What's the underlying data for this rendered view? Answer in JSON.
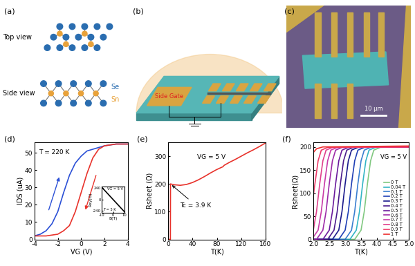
{
  "diagrams": {
    "a": {
      "label": "(a)",
      "views": [
        "Top view",
        "Side view"
      ],
      "atoms": [
        {
          "name": "Se",
          "color": "#2a6db0"
        },
        {
          "name": "Sn",
          "color": "#e8a23a"
        }
      ]
    },
    "b": {
      "label": "(b)",
      "gate_label": "Side Gate"
    },
    "c": {
      "label": "(c)",
      "scale_bar": "10 μm"
    }
  },
  "chart_data": [
    {
      "label": "(d)",
      "type": "line",
      "x_label": "VG (V)",
      "y_label": "IDS (uA)",
      "annotations": [
        "T = 220 K"
      ],
      "xlim": [
        -4,
        4
      ],
      "xticks": [
        -4,
        -2,
        0,
        2,
        4
      ],
      "ylim": [
        0,
        56
      ],
      "yticks": [
        0,
        10,
        20,
        30,
        40,
        50
      ],
      "series": [
        {
          "color": "#2b50d6",
          "x": [
            -4,
            -3.5,
            -3,
            -2.5,
            -2,
            -1.5,
            -1,
            -0.5,
            0,
            0.5,
            1,
            2,
            3,
            4
          ],
          "values": [
            2,
            3,
            5,
            9,
            16,
            27,
            37,
            44,
            48,
            51,
            52,
            54,
            55,
            55
          ]
        },
        {
          "color": "#e8322b",
          "x": [
            4,
            3,
            2,
            1.5,
            1,
            0.5,
            0,
            -0.5,
            -1,
            -1.5,
            -2,
            -3,
            -4
          ],
          "values": [
            55,
            55,
            54,
            52,
            47,
            38,
            27,
            16,
            8,
            5,
            3,
            2,
            2
          ]
        }
      ],
      "inset": {
        "type": "line",
        "x_label": "B(T)",
        "y_label": "Rxy(Ω)",
        "annotations": [
          "VG = 5 V",
          "T = 5 K"
        ],
        "xlim": [
          -10,
          10
        ],
        "xticks": [
          -10,
          0,
          10
        ],
        "ylim": [
          -280,
          280
        ],
        "yticks": [
          -240,
          0,
          240
        ],
        "series": [
          {
            "color": "#000000",
            "x": [
              -10,
              -5,
              0,
              5,
              10
            ],
            "values": [
              260,
              130,
              0,
              -130,
              -260
            ]
          }
        ]
      }
    },
    {
      "label": "(e)",
      "type": "line",
      "x_label": "T(K)",
      "y_label": "Rsheet (Ω)",
      "annotations": [
        "VG = 5 V"
      ],
      "tc_annotation": {
        "text": "Tc = 3.9 K",
        "x": 3.9,
        "y": 200
      },
      "xlim": [
        0,
        160
      ],
      "xticks": [
        0,
        40,
        80,
        120,
        160
      ],
      "ylim": [
        0,
        350
      ],
      "yticks": [
        0,
        100,
        200,
        300
      ],
      "series": [
        {
          "color": "#e8322b",
          "x": [
            0,
            3.8,
            3.9,
            4,
            10,
            20,
            30,
            40,
            50,
            60,
            70,
            80,
            90,
            92,
            100,
            110,
            120,
            130,
            140,
            150,
            160
          ],
          "values": [
            0,
            0,
            100,
            200,
            197,
            195,
            198,
            205,
            215,
            227,
            240,
            252,
            262,
            267,
            277,
            288,
            300,
            312,
            323,
            335,
            348
          ]
        }
      ]
    },
    {
      "label": "(f)",
      "type": "line",
      "x_label": "T(K)",
      "y_label": "Rsheet(Ω)",
      "annotations": [
        "VG = 5 V"
      ],
      "legend": "lower right",
      "xlim": [
        2.0,
        5.0
      ],
      "xticks": [
        2.0,
        2.5,
        3.0,
        3.5,
        4.0,
        4.5,
        5.0
      ],
      "ylim": [
        0,
        210
      ],
      "yticks": [
        0,
        50,
        100,
        150,
        200
      ],
      "series": [
        {
          "name": "0 T",
          "color": "#80c880",
          "x": [
            2.0,
            3.3,
            3.5,
            3.6,
            3.7,
            3.8,
            3.9,
            4.1,
            5.0
          ],
          "values": [
            0,
            0,
            20,
            60,
            120,
            170,
            193,
            199,
            200
          ]
        },
        {
          "name": "0.04 T",
          "color": "#33b5c5",
          "x": [
            2.0,
            3.15,
            3.35,
            3.45,
            3.55,
            3.65,
            3.75,
            3.95,
            5.0
          ],
          "values": [
            0,
            0,
            20,
            60,
            120,
            170,
            193,
            199,
            200
          ]
        },
        {
          "name": "0.1 T",
          "color": "#3a7fd0",
          "x": [
            2.0,
            3.0,
            3.2,
            3.3,
            3.4,
            3.5,
            3.6,
            3.8,
            5.0
          ],
          "values": [
            0,
            0,
            20,
            60,
            120,
            170,
            193,
            199,
            200
          ]
        },
        {
          "name": "0.2 T",
          "color": "#1f3fb5",
          "x": [
            2.0,
            2.8,
            3.0,
            3.1,
            3.2,
            3.3,
            3.4,
            3.6,
            5.0
          ],
          "values": [
            0,
            0,
            20,
            60,
            120,
            170,
            193,
            199,
            200
          ]
        },
        {
          "name": "0.3 T",
          "color": "#1a1a8c",
          "x": [
            2.0,
            2.6,
            2.8,
            2.9,
            3.0,
            3.1,
            3.2,
            3.4,
            5.0
          ],
          "values": [
            0,
            0,
            20,
            60,
            120,
            170,
            193,
            199,
            200
          ]
        },
        {
          "name": "0.4 T",
          "color": "#4a1a8c",
          "x": [
            2.0,
            2.45,
            2.65,
            2.75,
            2.85,
            2.95,
            3.05,
            3.25,
            5.0
          ],
          "values": [
            0,
            0,
            20,
            60,
            120,
            170,
            193,
            199,
            200
          ]
        },
        {
          "name": "0.5 T",
          "color": "#6a1a9c",
          "x": [
            2.0,
            2.3,
            2.5,
            2.6,
            2.7,
            2.8,
            2.9,
            3.1,
            5.0
          ],
          "values": [
            0,
            0,
            20,
            60,
            120,
            170,
            193,
            199,
            200
          ]
        },
        {
          "name": "0.6 T",
          "color": "#9c2aa8",
          "x": [
            2.0,
            2.1,
            2.3,
            2.4,
            2.5,
            2.6,
            2.7,
            2.9,
            5.0
          ],
          "values": [
            0,
            0,
            20,
            60,
            120,
            170,
            193,
            199,
            200
          ]
        },
        {
          "name": "0.7 T",
          "color": "#c83aa8",
          "x": [
            2.0,
            2.15,
            2.25,
            2.35,
            2.45,
            2.55,
            2.75,
            5.0
          ],
          "values": [
            5,
            20,
            60,
            120,
            170,
            193,
            199,
            200
          ]
        },
        {
          "name": "0.8 T",
          "color": "#e0408c",
          "x": [
            2.0,
            2.1,
            2.2,
            2.3,
            2.4,
            2.6,
            5.0
          ],
          "values": [
            20,
            60,
            120,
            170,
            193,
            199,
            200
          ]
        },
        {
          "name": "0.9 T",
          "color": "#ee3b6a",
          "x": [
            2.0,
            2.05,
            2.15,
            2.25,
            2.45,
            5.0
          ],
          "values": [
            95,
            120,
            170,
            193,
            199,
            200
          ]
        },
        {
          "name": "1 T",
          "color": "#ee2a2a",
          "x": [
            2.0,
            2.1,
            2.3,
            5.0
          ],
          "values": [
            188,
            196,
            200,
            202
          ]
        }
      ]
    }
  ]
}
